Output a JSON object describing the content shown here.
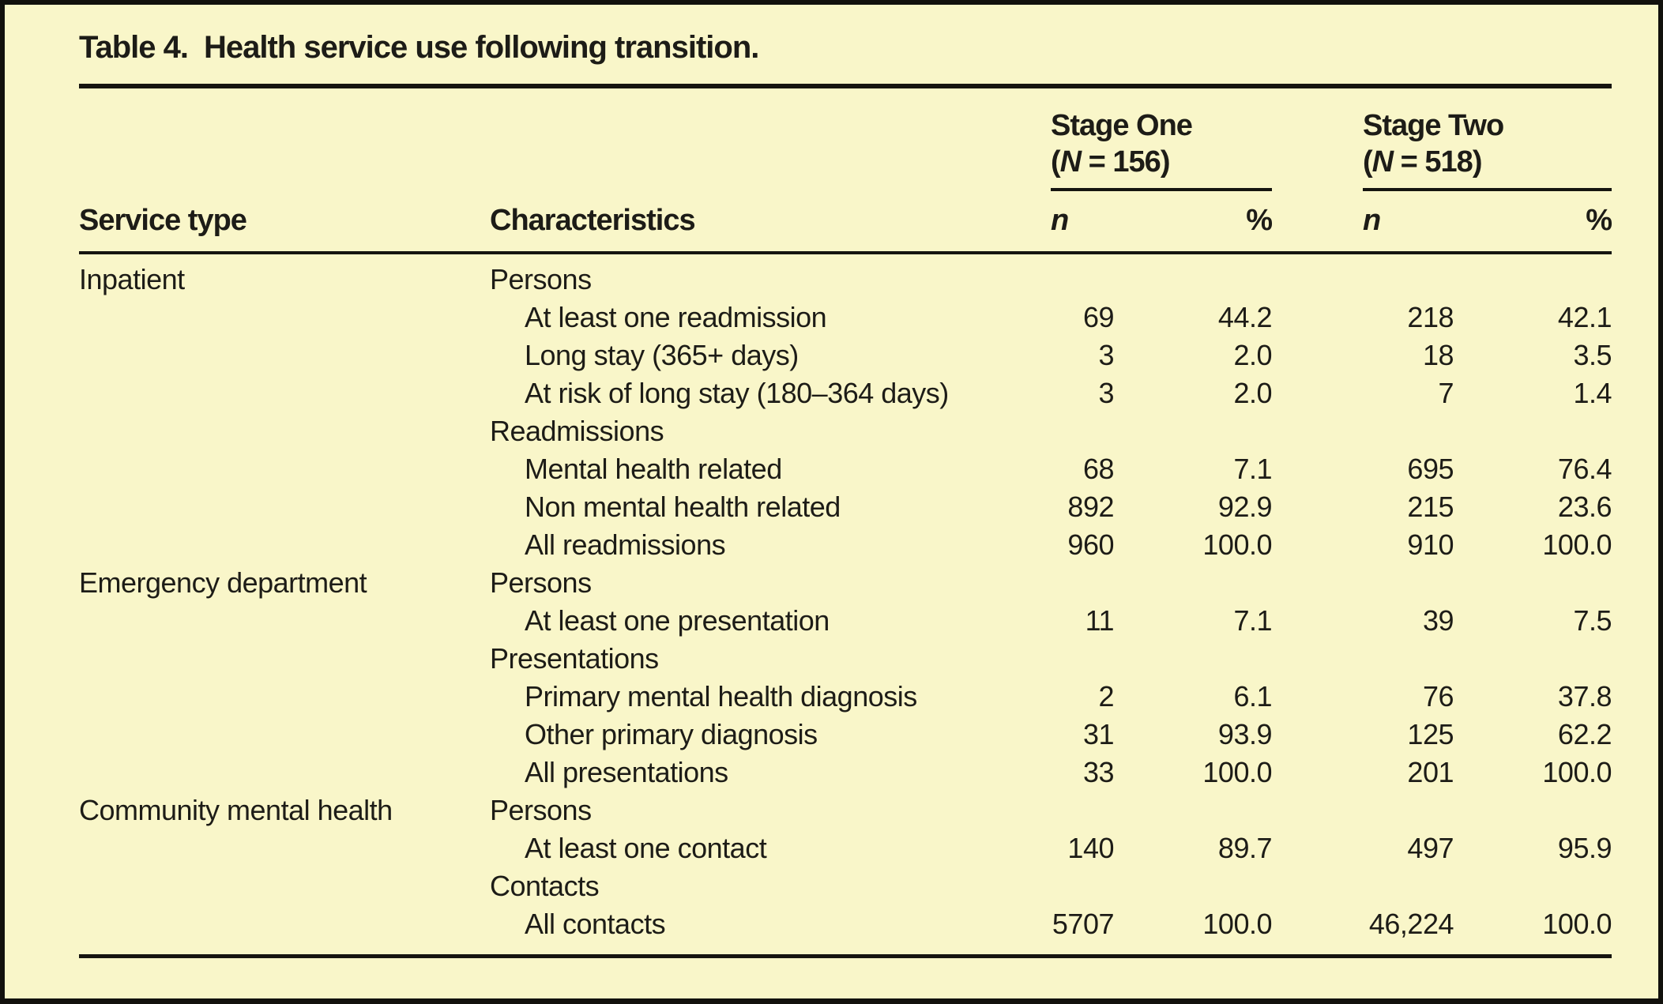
{
  "page": {
    "background_color": "#f9f6c9",
    "text_color": "#1d1c17",
    "rule_color": "#161510"
  },
  "table": {
    "title_label": "Table 4.",
    "title_text": "Health service use following transition.",
    "columns": {
      "service_type": "Service type",
      "characteristics": "Characteristics",
      "n_header": "n",
      "pct_header": "%"
    },
    "groups": [
      {
        "title": "Stage One",
        "paren_open": "(",
        "n_symbol": "N",
        "n_suffix": " = 156)"
      },
      {
        "title": "Stage Two",
        "paren_open": "(",
        "n_symbol": "N",
        "n_suffix": " = 518)"
      }
    ],
    "rows": [
      {
        "service": "Inpatient",
        "characteristic": "Persons",
        "indent": false,
        "s1n": "",
        "s1p": "",
        "s2n": "",
        "s2p": ""
      },
      {
        "service": "",
        "characteristic": "At least one readmission",
        "indent": true,
        "s1n": "69",
        "s1p": "44.2",
        "s2n": "218",
        "s2p": "42.1"
      },
      {
        "service": "",
        "characteristic": "Long stay (365+ days)",
        "indent": true,
        "s1n": "3",
        "s1p": "2.0",
        "s2n": "18",
        "s2p": "3.5"
      },
      {
        "service": "",
        "characteristic": "At risk of long stay (180–364 days)",
        "indent": true,
        "s1n": "3",
        "s1p": "2.0",
        "s2n": "7",
        "s2p": "1.4"
      },
      {
        "service": "",
        "characteristic": "Readmissions",
        "indent": false,
        "s1n": "",
        "s1p": "",
        "s2n": "",
        "s2p": ""
      },
      {
        "service": "",
        "characteristic": "Mental health related",
        "indent": true,
        "s1n": "68",
        "s1p": "7.1",
        "s2n": "695",
        "s2p": "76.4"
      },
      {
        "service": "",
        "characteristic": "Non mental health related",
        "indent": true,
        "s1n": "892",
        "s1p": "92.9",
        "s2n": "215",
        "s2p": "23.6"
      },
      {
        "service": "",
        "characteristic": "All readmissions",
        "indent": true,
        "s1n": "960",
        "s1p": "100.0",
        "s2n": "910",
        "s2p": "100.0"
      },
      {
        "service": "Emergency department",
        "characteristic": "Persons",
        "indent": false,
        "s1n": "",
        "s1p": "",
        "s2n": "",
        "s2p": ""
      },
      {
        "service": "",
        "characteristic": "At least one presentation",
        "indent": true,
        "s1n": "11",
        "s1p": "7.1",
        "s2n": "39",
        "s2p": "7.5"
      },
      {
        "service": "",
        "characteristic": "Presentations",
        "indent": false,
        "s1n": "",
        "s1p": "",
        "s2n": "",
        "s2p": ""
      },
      {
        "service": "",
        "characteristic": "Primary mental health diagnosis",
        "indent": true,
        "s1n": "2",
        "s1p": "6.1",
        "s2n": "76",
        "s2p": "37.8"
      },
      {
        "service": "",
        "characteristic": "Other primary diagnosis",
        "indent": true,
        "s1n": "31",
        "s1p": "93.9",
        "s2n": "125",
        "s2p": "62.2"
      },
      {
        "service": "",
        "characteristic": "All presentations",
        "indent": true,
        "s1n": "33",
        "s1p": "100.0",
        "s2n": "201",
        "s2p": "100.0"
      },
      {
        "service": "Community mental health",
        "characteristic": "Persons",
        "indent": false,
        "s1n": "",
        "s1p": "",
        "s2n": "",
        "s2p": ""
      },
      {
        "service": "",
        "characteristic": "At least one contact",
        "indent": true,
        "s1n": "140",
        "s1p": "89.7",
        "s2n": "497",
        "s2p": "95.9"
      },
      {
        "service": "",
        "characteristic": "Contacts",
        "indent": false,
        "s1n": "",
        "s1p": "",
        "s2n": "",
        "s2p": ""
      },
      {
        "service": "",
        "characteristic": "All contacts",
        "indent": true,
        "s1n": "5707",
        "s1p": "100.0",
        "s2n": "46,224",
        "s2p": "100.0"
      }
    ]
  }
}
